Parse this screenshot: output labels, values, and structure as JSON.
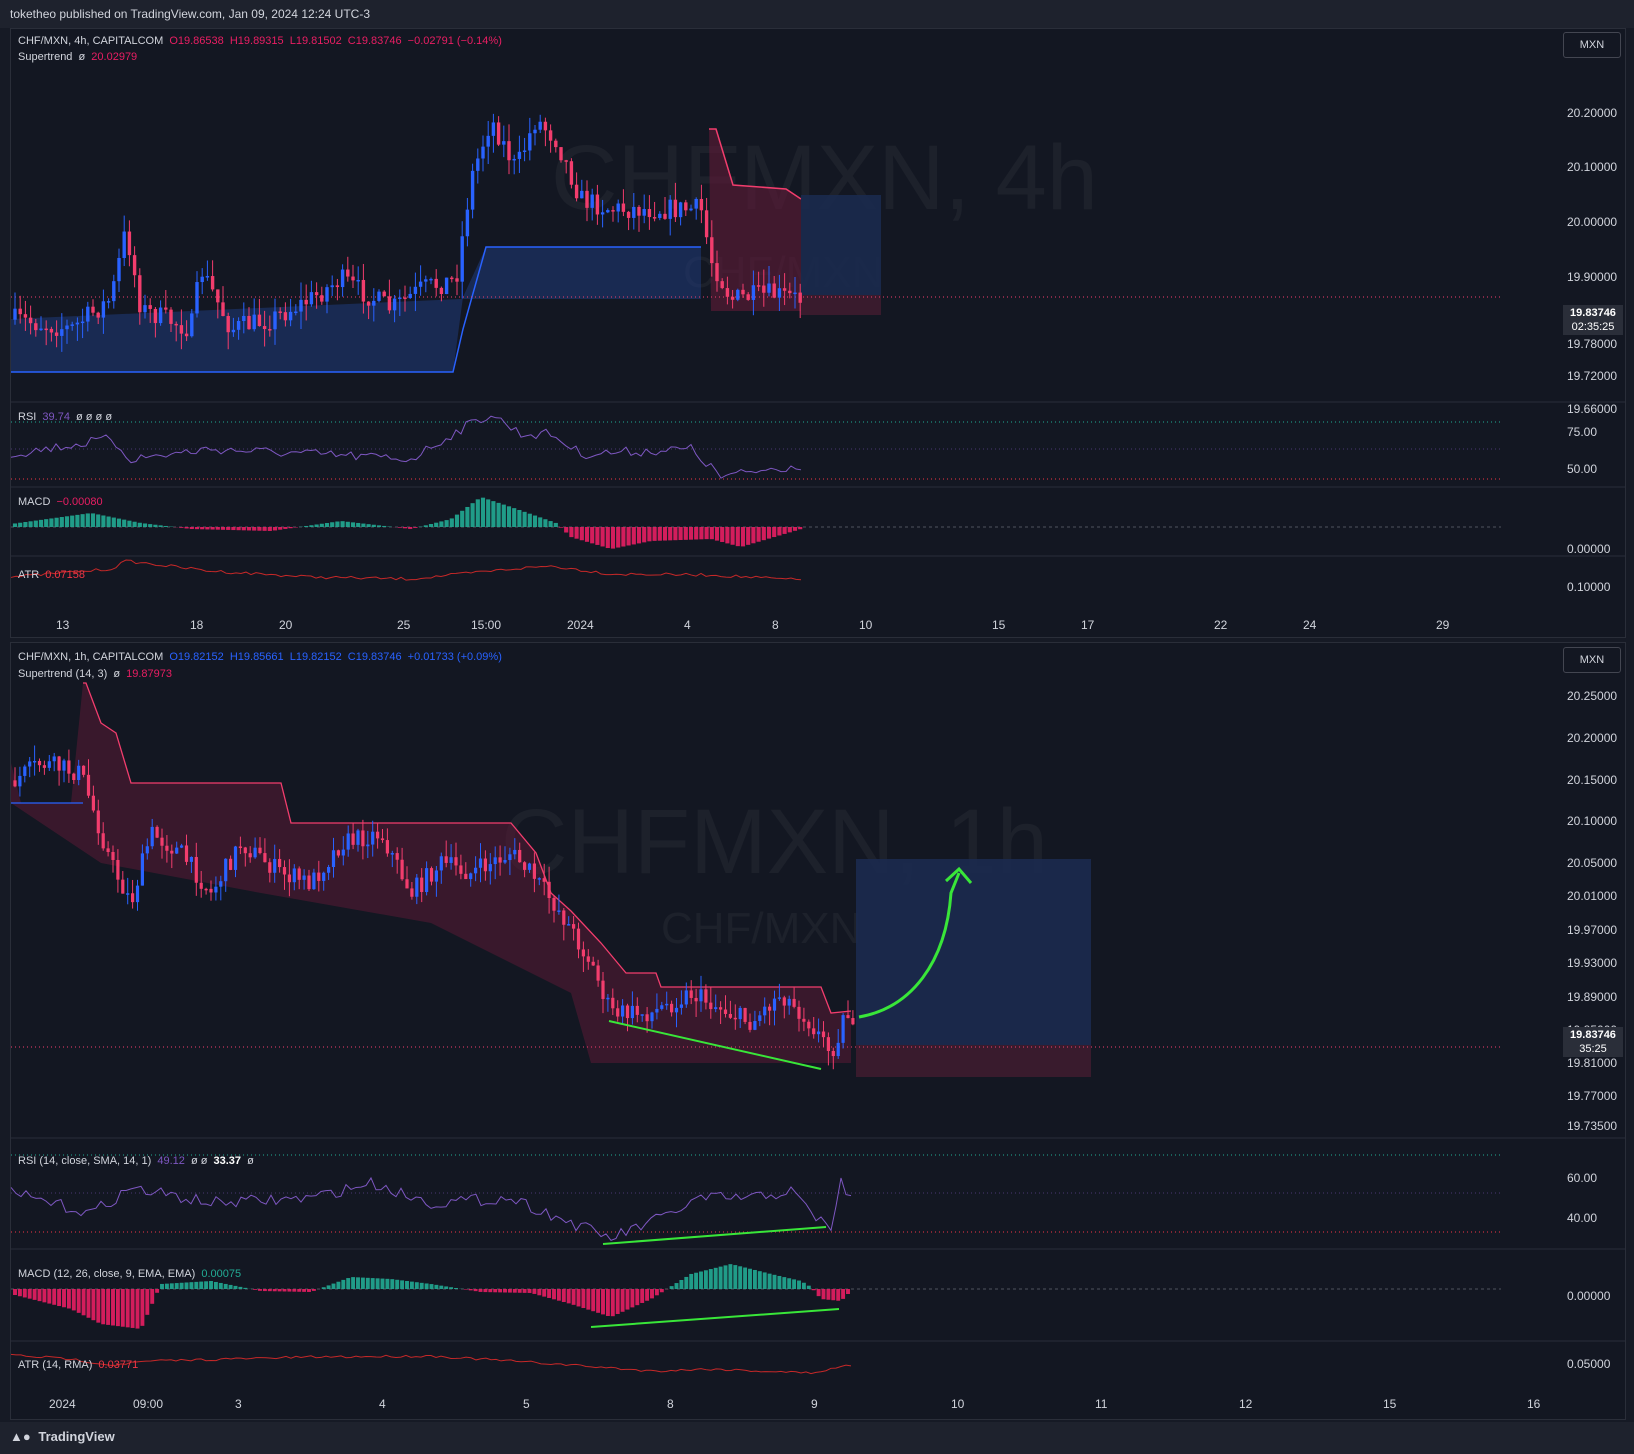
{
  "header": {
    "published_text": "toketheo published on TradingView.com, Jan 09, 2024 12:24 UTC-3"
  },
  "footer": {
    "logo_text": "TradingView",
    "logo_icon": "tradingview-logo-icon"
  },
  "chart1": {
    "symbol_line": "CHF/MXN, 4h, CAPITALCOM",
    "ohlc": {
      "o": "O19.86538",
      "h": "H19.89315",
      "l": "L19.81502",
      "c": "C19.83746",
      "chg": "−0.02791 (−0.14%)"
    },
    "watermark_big": "CHFMXN, 4h",
    "watermark_small": "CHF/MXN",
    "currency_button": "MXN",
    "supertrend_label": "Supertrend",
    "supertrend_flag": "ø",
    "supertrend_value": "20.02979",
    "price_axis": [
      "20.20000",
      "20.10000",
      "20.00000",
      "19.90000",
      "19.78000",
      "19.72000",
      "19.66000"
    ],
    "last_price": "19.83746",
    "countdown": "02:35:25",
    "rsi": {
      "label": "RSI",
      "value": "39.74",
      "extras": "ø ø ø ø",
      "axis": [
        "75.00",
        "50.00"
      ]
    },
    "macd": {
      "label": "MACD",
      "value": "−0.00080",
      "axis": [
        "0.00000"
      ]
    },
    "atr": {
      "label": "ATR",
      "value": "0.07158",
      "axis": [
        "0.10000"
      ]
    },
    "time_axis": [
      "13",
      "18",
      "20",
      "25",
      "15:00",
      "2024",
      "4",
      "8",
      "10",
      "15",
      "17",
      "22",
      "24",
      "29"
    ]
  },
  "chart2": {
    "symbol_line": "CHF/MXN, 1h, CAPITALCOM",
    "ohlc": {
      "o": "O19.82152",
      "h": "H19.85661",
      "l": "L19.82152",
      "c": "C19.83746",
      "chg": "+0.01733 (+0.09%)"
    },
    "watermark_big": "CHFMXN, 1h",
    "watermark_small": "CHF/MXN",
    "currency_button": "MXN",
    "supertrend_label": "Supertrend (14, 3)",
    "supertrend_flag": "ø",
    "supertrend_value": "19.87973",
    "price_axis": [
      "20.25000",
      "20.20000",
      "20.15000",
      "20.10000",
      "20.05000",
      "20.01000",
      "19.97000",
      "19.93000",
      "19.89000",
      "19.85000",
      "19.81000",
      "19.77000",
      "19.73500"
    ],
    "last_price": "19.83746",
    "countdown": "35:25",
    "rsi": {
      "label": "RSI (14, close, SMA, 14, 1)",
      "value": "49.12",
      "extras": "ø ø",
      "value2": "33.37",
      "extras2": "ø",
      "axis": [
        "60.00",
        "40.00"
      ]
    },
    "macd": {
      "label": "MACD (12, 26, close, 9, EMA, EMA)",
      "value": "0.00075",
      "axis": [
        "0.00000"
      ]
    },
    "atr": {
      "label": "ATR (14, RMA)",
      "value": "0.03771",
      "axis": [
        "0.05000"
      ]
    },
    "time_axis": [
      "2024",
      "09:00",
      "3",
      "4",
      "5",
      "8",
      "9",
      "10",
      "11",
      "12",
      "15",
      "16"
    ]
  },
  "colors": {
    "bull": "#2962ff",
    "bear": "#f23d6d",
    "macd_pos": "#22ab94",
    "macd_neg": "#e91e63",
    "rsi_line": "#7e57c2",
    "atr_line": "#c62828",
    "trendline": "#39e639",
    "long_target": "#1b2a4e",
    "long_stop": "#3b1b2e"
  }
}
